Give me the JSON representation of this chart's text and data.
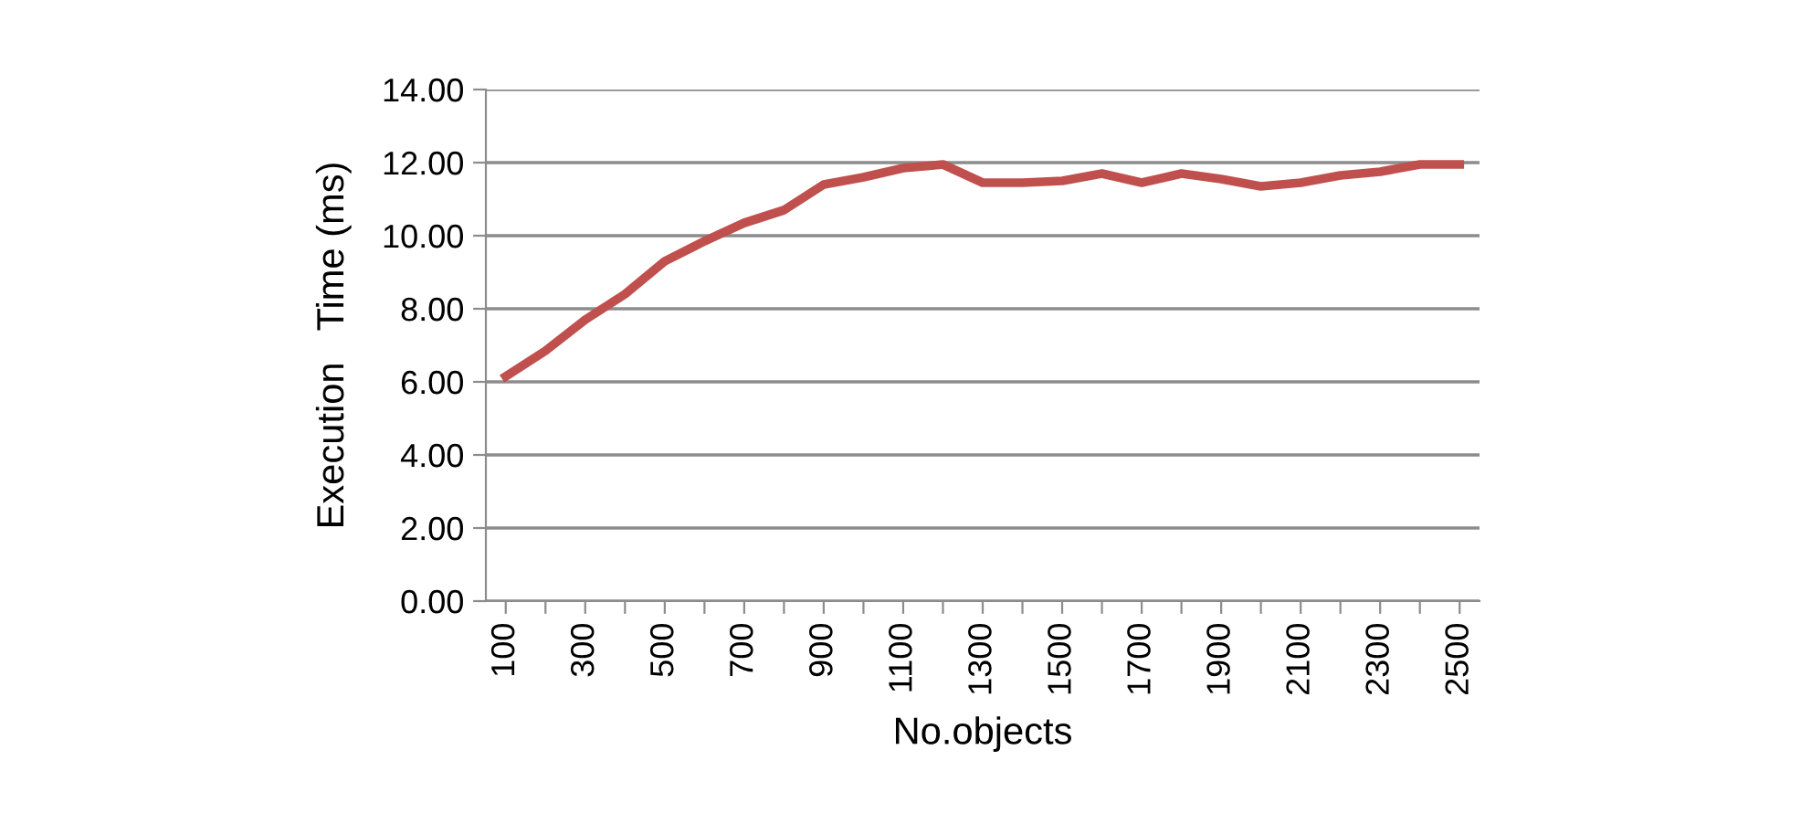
{
  "chart_data": {
    "type": "line",
    "xlabel": "No.objects",
    "ylabel": "Execution   Time (ms)",
    "categories": [
      "100",
      null,
      "300",
      null,
      "500",
      null,
      "700",
      null,
      "900",
      null,
      "1100",
      null,
      "1300",
      null,
      "1500",
      null,
      "1700",
      null,
      "1900",
      null,
      "2100",
      null,
      "2300",
      null,
      "2500"
    ],
    "series": [
      {
        "color": "#c0504d",
        "values": [
          6.15,
          6.85,
          7.7,
          8.4,
          9.3,
          9.85,
          10.35,
          10.7,
          11.4,
          11.6,
          11.85,
          11.95,
          11.45,
          11.45,
          11.5,
          11.7,
          11.45,
          11.7,
          11.55,
          11.35,
          11.45,
          11.65,
          11.75,
          11.95,
          11.95
        ]
      }
    ],
    "ylim": [
      0,
      14
    ],
    "yticks": [
      {
        "value": 0,
        "label": "0.00"
      },
      {
        "value": 2,
        "label": "2.00"
      },
      {
        "value": 4,
        "label": "4.00"
      },
      {
        "value": 6,
        "label": "6.00"
      },
      {
        "value": 8,
        "label": "8.00"
      },
      {
        "value": 10,
        "label": "10.00"
      },
      {
        "value": 12,
        "label": "12.00"
      },
      {
        "value": 14,
        "label": "14.00"
      }
    ],
    "grid": "y",
    "legend": false,
    "marker": "none",
    "line_style": "solid"
  }
}
